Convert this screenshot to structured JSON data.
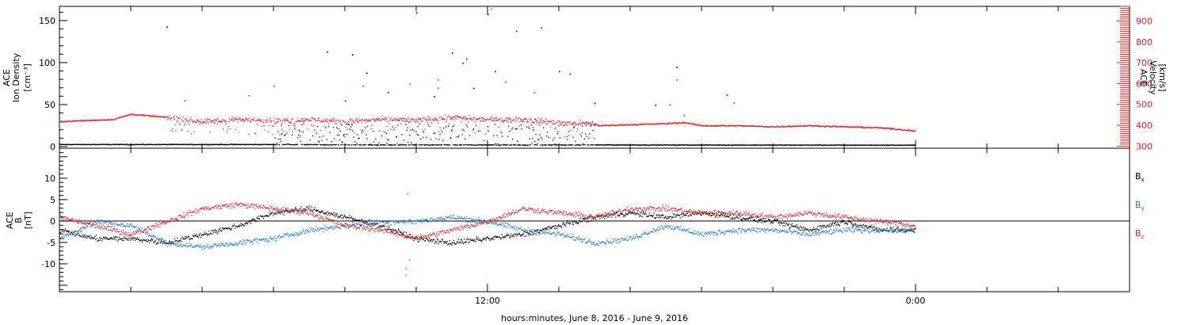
{
  "figure": {
    "xlabel": "hours:minutes, June  8, 2016 - June  9, 2016",
    "x_tick_labels": [
      {
        "hour": 12,
        "label": "12:00"
      },
      {
        "hour": 24,
        "label": "0:00"
      }
    ],
    "x_range_hours": [
      0,
      30
    ]
  },
  "chart_data": [
    {
      "type": "scatter",
      "panel": "ion-density-velocity",
      "ylabel_left": [
        "ACE",
        "Ion Density",
        "[cm⁻³]"
      ],
      "ylabel_right": [
        "ACE",
        "Velocity",
        "[km/s]"
      ],
      "y_left_range": [
        -2,
        167
      ],
      "y_left_ticks": [
        0,
        50,
        100,
        150
      ],
      "y_right_range": [
        290,
        970
      ],
      "y_right_ticks": [
        300,
        400,
        500,
        600,
        700,
        800,
        900
      ],
      "series": [
        {
          "key": "density",
          "color": "#000000",
          "axis": "left",
          "baseline": [
            [
              0,
              3
            ],
            [
              3,
              3
            ],
            [
              6,
              3
            ],
            [
              9,
              2.5
            ],
            [
              12,
              2.5
            ],
            [
              15,
              2.5
            ],
            [
              24,
              2.2
            ]
          ],
          "scatter_window": [
            6,
            15
          ],
          "outliers": [
            [
              3.0,
              143
            ],
            [
              7.5,
              113
            ],
            [
              8.2,
              110
            ],
            [
              8.6,
              88
            ],
            [
              9.2,
              65
            ],
            [
              8.0,
              55
            ],
            [
              10.0,
              160
            ],
            [
              10.5,
              60
            ],
            [
              11.0,
              112
            ],
            [
              11.3,
              100
            ],
            [
              11.4,
              105
            ],
            [
              11.6,
              70
            ],
            [
              12.0,
              158
            ],
            [
              12.2,
              90
            ],
            [
              12.8,
              138
            ],
            [
              13.5,
              142
            ],
            [
              14.0,
              90
            ],
            [
              14.3,
              87
            ],
            [
              15.0,
              52
            ],
            [
              17.3,
              95
            ],
            [
              16.7,
              50
            ],
            [
              18.7,
              62
            ]
          ]
        },
        {
          "key": "velocity",
          "color": "#e02020",
          "axis": "right",
          "baseline": [
            [
              0,
              420
            ],
            [
              1.5,
              430
            ],
            [
              2,
              455
            ],
            [
              3,
              440
            ],
            [
              4,
              420
            ],
            [
              5,
              430
            ],
            [
              6,
              425
            ],
            [
              7,
              430
            ],
            [
              8,
              420
            ],
            [
              9,
              430
            ],
            [
              10,
              425
            ],
            [
              11,
              440
            ],
            [
              12,
              430
            ],
            [
              13,
              430
            ],
            [
              14,
              415
            ],
            [
              15,
              410
            ],
            [
              15.1,
              400
            ],
            [
              16,
              405
            ],
            [
              17,
              410
            ],
            [
              17.5,
              415
            ],
            [
              18,
              400
            ],
            [
              19,
              400
            ],
            [
              20,
              395
            ],
            [
              21,
              400
            ],
            [
              22,
              395
            ],
            [
              23,
              390
            ],
            [
              24,
              375
            ]
          ],
          "scatter_window": [
            3,
            15
          ],
          "outliers": [
            [
              3.5,
              520
            ],
            [
              5.3,
              545
            ],
            [
              6.0,
              590
            ],
            [
              8.5,
              590
            ],
            [
              9.8,
              600
            ],
            [
              10.6,
              580
            ],
            [
              10.6,
              620
            ],
            [
              12.1,
              960
            ],
            [
              12.5,
              610
            ],
            [
              13.3,
              560
            ],
            [
              17.3,
              620
            ],
            [
              17.1,
              500
            ],
            [
              17.5,
              450
            ],
            [
              18.9,
              510
            ]
          ]
        }
      ]
    },
    {
      "type": "scatter",
      "panel": "magnetic-field",
      "ylabel_left": [
        "ACE",
        "B",
        "[nT]"
      ],
      "y_range": [
        -16.5,
        17
      ],
      "y_ticks": [
        -10,
        -5,
        0,
        5,
        10
      ],
      "zero_line": true,
      "legend_placement": "right",
      "series": [
        {
          "name": "B",
          "subscript": "x",
          "color": "#000000",
          "profile": [
            [
              0,
              -2
            ],
            [
              1,
              -4
            ],
            [
              2,
              -4
            ],
            [
              3,
              -5
            ],
            [
              4,
              -3
            ],
            [
              5,
              -1
            ],
            [
              6,
              2
            ],
            [
              7,
              3
            ],
            [
              8,
              1
            ],
            [
              9,
              -1
            ],
            [
              10,
              -4
            ],
            [
              11,
              -5
            ],
            [
              12,
              -4
            ],
            [
              13,
              -3
            ],
            [
              14,
              -1
            ],
            [
              15,
              1
            ],
            [
              16,
              2
            ],
            [
              17,
              1
            ],
            [
              18,
              2
            ],
            [
              19,
              1
            ],
            [
              20,
              0
            ],
            [
              21,
              -2
            ],
            [
              22,
              0
            ],
            [
              23,
              -2
            ],
            [
              24,
              -2
            ]
          ]
        },
        {
          "name": "B",
          "subscript": "y",
          "color": "#1f78c8",
          "profile": [
            [
              0,
              -4
            ],
            [
              1,
              0
            ],
            [
              2,
              -1
            ],
            [
              3,
              -5
            ],
            [
              4,
              -6
            ],
            [
              5,
              -5
            ],
            [
              6,
              -4
            ],
            [
              7,
              -2
            ],
            [
              8,
              -1
            ],
            [
              9,
              0
            ],
            [
              10,
              0
            ],
            [
              11,
              1
            ],
            [
              12,
              0
            ],
            [
              13,
              -2
            ],
            [
              14,
              -3
            ],
            [
              15,
              -5
            ],
            [
              16,
              -4
            ],
            [
              17,
              -1
            ],
            [
              18,
              -3
            ],
            [
              19,
              -2
            ],
            [
              20,
              -2
            ],
            [
              21,
              -3
            ],
            [
              22,
              -2
            ],
            [
              23,
              -2
            ],
            [
              24,
              -2
            ]
          ]
        },
        {
          "name": "B",
          "subscript": "z",
          "color": "#e02020",
          "profile": [
            [
              0,
              1
            ],
            [
              1,
              -1
            ],
            [
              2,
              -3
            ],
            [
              3,
              0
            ],
            [
              4,
              3
            ],
            [
              5,
              4
            ],
            [
              6,
              3
            ],
            [
              7,
              2
            ],
            [
              8,
              -1
            ],
            [
              9,
              -2
            ],
            [
              10,
              -4
            ],
            [
              11,
              -2
            ],
            [
              12,
              0
            ],
            [
              13,
              3
            ],
            [
              14,
              2
            ],
            [
              15,
              1
            ],
            [
              16,
              3
            ],
            [
              17,
              3
            ],
            [
              18,
              2
            ],
            [
              19,
              2
            ],
            [
              20,
              1
            ],
            [
              21,
              2
            ],
            [
              22,
              1
            ],
            [
              23,
              0
            ],
            [
              24,
              -1
            ]
          ]
        }
      ]
    }
  ]
}
